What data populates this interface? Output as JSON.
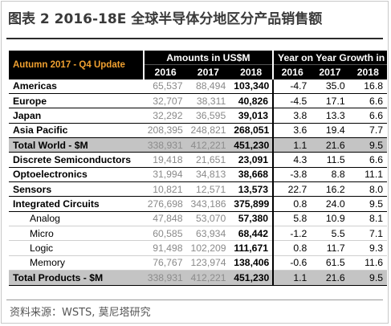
{
  "title": "图表 2 2016-18E 全球半导体分地区分产品销售额",
  "header": {
    "update_label": "Autumn 2017 - Q4 Update",
    "amounts_label": "Amounts in US$M",
    "growth_label": "Year on Year Growth in %",
    "years": [
      "2016",
      "2017",
      "2018"
    ]
  },
  "rows": [
    {
      "label": "Americas",
      "a": [
        "65,537",
        "88,494",
        "103,340"
      ],
      "g": [
        "-4.7",
        "35.0",
        "16.8"
      ]
    },
    {
      "label": "Europe",
      "a": [
        "32,707",
        "38,311",
        "40,826"
      ],
      "g": [
        "-4.5",
        "17.1",
        "6.6"
      ]
    },
    {
      "label": "Japan",
      "a": [
        "32,292",
        "36,595",
        "39,013"
      ],
      "g": [
        "3.8",
        "13.3",
        "6.6"
      ]
    },
    {
      "label": "Asia Pacific",
      "a": [
        "208,395",
        "248,821",
        "268,051"
      ],
      "g": [
        "3.6",
        "19.4",
        "7.7"
      ]
    },
    {
      "label": "Total World - $M",
      "a": [
        "338,931",
        "412,221",
        "451,230"
      ],
      "g": [
        "1.1",
        "21.6",
        "9.5"
      ]
    },
    {
      "label": "Discrete Semiconductors",
      "a": [
        "19,418",
        "21,651",
        "23,091"
      ],
      "g": [
        "4.3",
        "11.5",
        "6.6"
      ]
    },
    {
      "label": "Optoelectronics",
      "a": [
        "31,994",
        "34,813",
        "38,668"
      ],
      "g": [
        "-3.8",
        "8.8",
        "11.1"
      ]
    },
    {
      "label": "Sensors",
      "a": [
        "10,821",
        "12,571",
        "13,573"
      ],
      "g": [
        "22.7",
        "16.2",
        "8.0"
      ]
    },
    {
      "label": "Integrated Circuits",
      "a": [
        "276,698",
        "343,186",
        "375,899"
      ],
      "g": [
        "0.8",
        "24.0",
        "9.5"
      ]
    },
    {
      "label": "Analog",
      "a": [
        "47,848",
        "53,070",
        "57,380"
      ],
      "g": [
        "5.8",
        "10.9",
        "8.1"
      ]
    },
    {
      "label": "Micro",
      "a": [
        "60,585",
        "63,934",
        "68,442"
      ],
      "g": [
        "-1.2",
        "5.5",
        "7.1"
      ]
    },
    {
      "label": "Logic",
      "a": [
        "91,498",
        "102,209",
        "111,671"
      ],
      "g": [
        "0.8",
        "11.7",
        "9.3"
      ]
    },
    {
      "label": "Memory",
      "a": [
        "76,767",
        "123,974",
        "138,406"
      ],
      "g": [
        "-0.6",
        "61.5",
        "11.6"
      ]
    },
    {
      "label": "Total Products - $M",
      "a": [
        "338,931",
        "412,221",
        "451,230"
      ],
      "g": [
        "1.1",
        "21.6",
        "9.5"
      ]
    }
  ],
  "source": "资料来源：WSTS, 莫尼塔研究"
}
